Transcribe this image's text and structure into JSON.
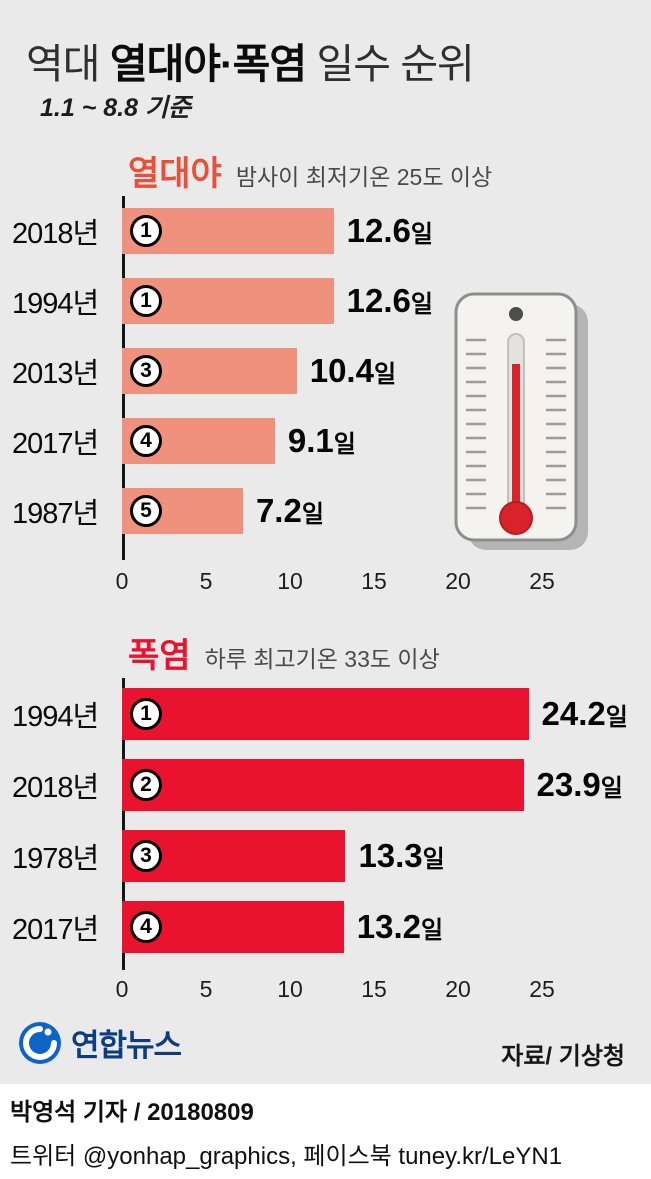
{
  "header": {
    "title_prefix": "역대 ",
    "title_bold": "열대야·폭염",
    "title_suffix": " 일수 순위",
    "subtitle": "1.1 ~ 8.8 기준"
  },
  "chart_data": [
    {
      "type": "bar",
      "title": "열대야",
      "subtitle": "밤사이 최저기온 25도 이상",
      "categories": [
        "2018년",
        "1994년",
        "2013년",
        "2017년",
        "1987년"
      ],
      "ranks": [
        "1",
        "1",
        "3",
        "4",
        "5"
      ],
      "values": [
        12.6,
        12.6,
        10.4,
        9.1,
        7.2
      ],
      "unit": "일",
      "xlim": [
        0,
        25
      ],
      "ticks": [
        0,
        5,
        10,
        15,
        20,
        25
      ],
      "bar_color": "#f0917e",
      "title_color": "#e8503a",
      "grid": false,
      "legend": false
    },
    {
      "type": "bar",
      "title": "폭염",
      "subtitle": "하루 최고기온 33도 이상",
      "categories": [
        "1994년",
        "2018년",
        "1978년",
        "2017년"
      ],
      "ranks": [
        "1",
        "2",
        "3",
        "4"
      ],
      "values": [
        24.2,
        23.9,
        13.3,
        13.2
      ],
      "unit": "일",
      "xlim": [
        0,
        25
      ],
      "ticks": [
        0,
        5,
        10,
        15,
        20,
        25
      ],
      "bar_color": "#e9132f",
      "title_color": "#e9132f",
      "grid": false,
      "legend": false
    }
  ],
  "footer": {
    "logo_text": "연합뉴스",
    "source": "자료/ 기상청"
  },
  "credits": {
    "byline": "박영석 기자 / 20180809",
    "social": "트위터 @yonhap_graphics, 페이스북 tuney.kr/LeYN1"
  }
}
